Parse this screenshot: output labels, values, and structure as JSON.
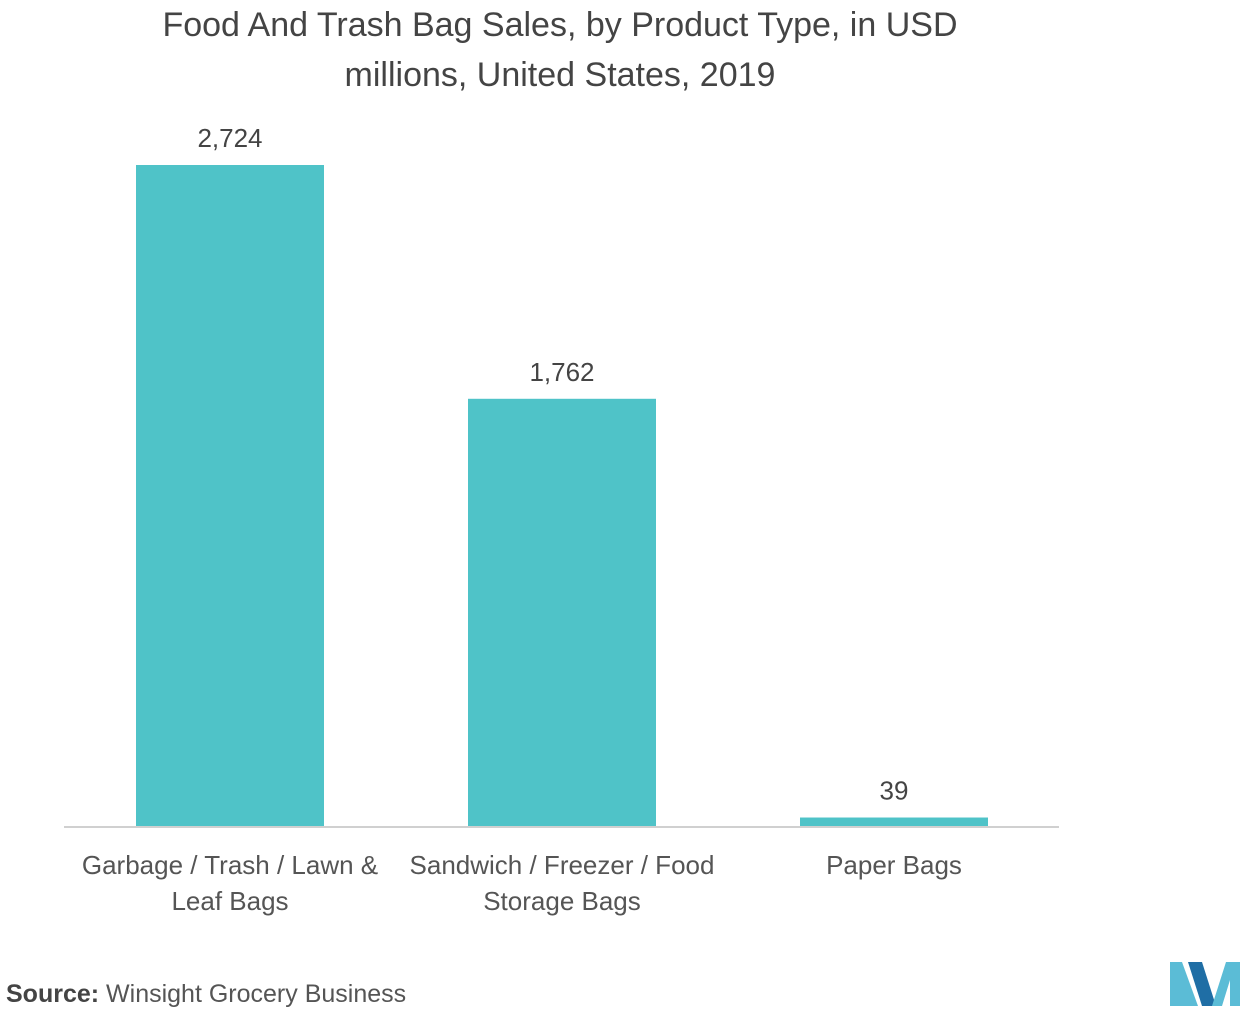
{
  "title_lines": [
    "Food And Trash Bag Sales, by Product Type, in USD",
    "millions, United States, 2019"
  ],
  "source": {
    "label": "Source:",
    "text": "Winsight Grocery Business"
  },
  "colors": {
    "bar": "#4FC3C8",
    "axis": "#d0d0d0",
    "logo_dark": "#1f6ea5",
    "logo_light": "#5bbcd6"
  },
  "chart_data": {
    "type": "bar",
    "title": "Food And Trash Bag Sales, by Product Type, in USD millions, United States, 2019",
    "categories": [
      [
        "Garbage / Trash / Lawn &",
        "Leaf Bags"
      ],
      [
        "Sandwich / Freezer / Food",
        "Storage Bags"
      ],
      [
        "Paper Bags"
      ]
    ],
    "values": [
      2724,
      1762,
      39
    ],
    "value_labels": [
      "2,724",
      "1,762",
      "39"
    ],
    "xlabel": "",
    "ylabel": "",
    "ylim": [
      0,
      2724
    ],
    "grid": false,
    "legend": "none"
  }
}
